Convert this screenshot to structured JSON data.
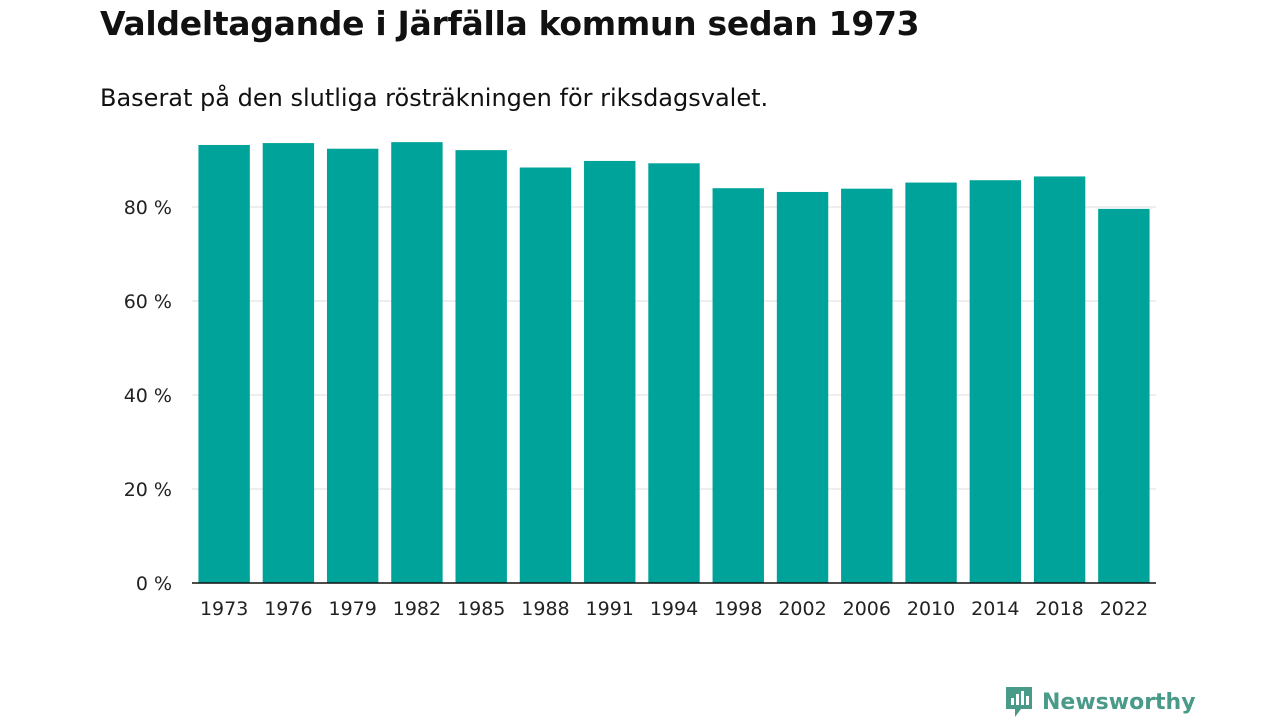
{
  "chart_data": {
    "type": "bar",
    "title": "Valdeltagande i Järfälla kommun sedan 1973",
    "subtitle": "Baserat på den slutliga rösträkningen för riksdagsvalet.",
    "xlabel": "",
    "ylabel": "",
    "categories": [
      "1973",
      "1976",
      "1979",
      "1982",
      "1985",
      "1988",
      "1991",
      "1994",
      "1998",
      "2002",
      "2006",
      "2010",
      "2014",
      "2018",
      "2022"
    ],
    "values": [
      93.2,
      93.6,
      92.4,
      93.8,
      92.1,
      88.4,
      89.8,
      89.3,
      84.0,
      83.2,
      83.9,
      85.2,
      85.7,
      86.5,
      79.6
    ],
    "ylim": [
      0,
      100
    ],
    "yticks": [
      0,
      20,
      40,
      60,
      80
    ],
    "ytick_labels": [
      "0 %",
      "20 %",
      "40 %",
      "60 %",
      "80 %"
    ],
    "grid": true,
    "bar_color": "#00a39a"
  },
  "branding": {
    "logo_text": "Newsworthy",
    "logo_color": "#4a9a8a"
  }
}
